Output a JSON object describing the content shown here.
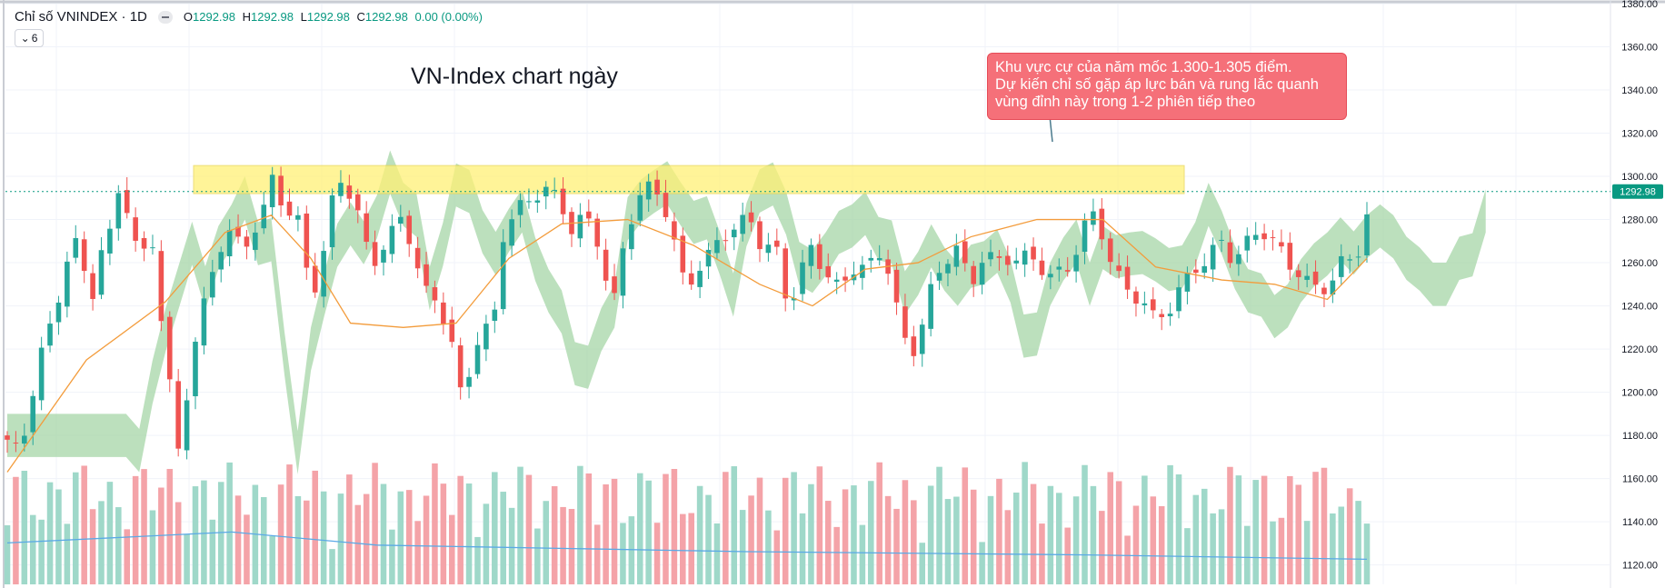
{
  "header": {
    "symbol": "Chỉ số VNINDEX · 1D",
    "ohlc": {
      "o_label": "O",
      "o_value": "1292.98",
      "h_label": "H",
      "h_value": "1292.98",
      "l_label": "L",
      "l_value": "1292.98",
      "c_label": "C",
      "c_value": "1292.98",
      "change": "0.00 (0.00%)"
    },
    "indicator_count": "6"
  },
  "annotation": {
    "line1": "Khu vực cự của năm mốc 1.300-1.305 điểm.",
    "line2": "Dự kiến chỉ số gặp áp lực bán và rung lắc quanh",
    "line3": "vùng đỉnh này trong 1-2 phiên tiếp theo"
  },
  "colors": {
    "up": "#26a69a",
    "down": "#ef5350",
    "volume_up": "#9fd8c9",
    "volume_down": "#f4a3a8",
    "cloud_bull": "#a5d6a7",
    "cloud_bear": "#f8bbd0",
    "ma": "#f39c3c",
    "volume_ma": "#5aa9e6",
    "resistance_zone": "#fff176",
    "price_tag": "#089981"
  },
  "chart_data": {
    "type": "candlestick",
    "title": "VN-Index chart ngày",
    "y_axis": {
      "ticks": [
        1120,
        1140,
        1160,
        1180,
        1200,
        1220,
        1240,
        1260,
        1280,
        1300,
        1320,
        1340,
        1360,
        1380
      ],
      "tick_labels": [
        "1120.00",
        "1140.00",
        "1160.00",
        "1180.00",
        "1200.00",
        "1220.00",
        "1240.00",
        "1260.00",
        "1280.00",
        "1300.00",
        "1320.00",
        "1340.00",
        "1360.00",
        "1380.00"
      ],
      "range": [
        1111,
        1380
      ],
      "position": "right"
    },
    "last_price": 1292.98,
    "last_price_label": "1292.98",
    "resistance_zone": [
      1292,
      1305
    ],
    "close_path": [
      [
        0,
        1178
      ],
      [
        10,
        1171
      ],
      [
        18,
        1197
      ],
      [
        28,
        1225
      ],
      [
        35,
        1232
      ],
      [
        45,
        1262
      ],
      [
        55,
        1272
      ],
      [
        62,
        1236
      ],
      [
        70,
        1265
      ],
      [
        80,
        1275
      ],
      [
        86,
        1300
      ],
      [
        96,
        1270
      ],
      [
        106,
        1262
      ],
      [
        112,
        1272
      ],
      [
        118,
        1224
      ],
      [
        125,
        1196
      ],
      [
        130,
        1170
      ],
      [
        140,
        1218
      ],
      [
        150,
        1243
      ],
      [
        160,
        1266
      ],
      [
        170,
        1276
      ],
      [
        178,
        1265
      ],
      [
        186,
        1274
      ],
      [
        196,
        1287
      ],
      [
        200,
        1300
      ],
      [
        210,
        1285
      ],
      [
        220,
        1280
      ],
      [
        230,
        1246
      ],
      [
        236,
        1252
      ],
      [
        246,
        1288
      ],
      [
        254,
        1300
      ],
      [
        262,
        1288
      ],
      [
        266,
        1282
      ],
      [
        276,
        1258
      ],
      [
        290,
        1273
      ],
      [
        300,
        1282
      ],
      [
        306,
        1268
      ],
      [
        316,
        1247
      ],
      [
        326,
        1242
      ],
      [
        336,
        1225
      ],
      [
        345,
        1194
      ],
      [
        354,
        1222
      ],
      [
        366,
        1232
      ],
      [
        370,
        1238
      ],
      [
        376,
        1274
      ],
      [
        386,
        1285
      ],
      [
        394,
        1288
      ],
      [
        402,
        1292
      ],
      [
        410,
        1295
      ],
      [
        418,
        1288
      ],
      [
        428,
        1275
      ],
      [
        434,
        1280
      ],
      [
        444,
        1278
      ],
      [
        456,
        1246
      ],
      [
        460,
        1243
      ],
      [
        468,
        1272
      ],
      [
        478,
        1290
      ],
      [
        488,
        1296
      ],
      [
        496,
        1290
      ],
      [
        504,
        1272
      ],
      [
        514,
        1248
      ],
      [
        520,
        1254
      ],
      [
        530,
        1262
      ],
      [
        540,
        1272
      ],
      [
        550,
        1275
      ],
      [
        562,
        1282
      ],
      [
        572,
        1266
      ],
      [
        582,
        1268
      ],
      [
        592,
        1238
      ],
      [
        608,
        1268
      ],
      [
        620,
        1255
      ],
      [
        630,
        1248
      ],
      [
        642,
        1258
      ],
      [
        652,
        1258
      ],
      [
        664,
        1266
      ],
      [
        676,
        1233
      ],
      [
        684,
        1215
      ],
      [
        690,
        1225
      ],
      [
        700,
        1248
      ],
      [
        712,
        1262
      ],
      [
        720,
        1268
      ],
      [
        730,
        1248
      ],
      [
        740,
        1265
      ],
      [
        752,
        1260
      ],
      [
        760,
        1262
      ],
      [
        774,
        1263
      ],
      [
        782,
        1258
      ],
      [
        792,
        1254
      ],
      [
        804,
        1257
      ],
      [
        812,
        1270
      ],
      [
        820,
        1285
      ],
      [
        830,
        1272
      ],
      [
        838,
        1258
      ],
      [
        850,
        1245
      ],
      [
        860,
        1243
      ],
      [
        870,
        1233
      ],
      [
        880,
        1238
      ],
      [
        888,
        1248
      ],
      [
        898,
        1256
      ],
      [
        910,
        1262
      ],
      [
        918,
        1271
      ],
      [
        928,
        1261
      ],
      [
        940,
        1270
      ],
      [
        950,
        1275
      ],
      [
        960,
        1270
      ],
      [
        972,
        1258
      ],
      [
        980,
        1255
      ],
      [
        990,
        1248
      ],
      [
        1000,
        1248
      ],
      [
        1010,
        1260
      ],
      [
        1022,
        1262
      ],
      [
        1030,
        1282
      ]
    ],
    "candle_count": 160,
    "volume_ma_line": [
      [
        0,
        0.38
      ],
      [
        170,
        0.48
      ],
      [
        280,
        0.36
      ],
      [
        560,
        0.3
      ],
      [
        820,
        0.27
      ],
      [
        1030,
        0.23
      ]
    ],
    "price_ma_line": [
      [
        0,
        1163
      ],
      [
        60,
        1215
      ],
      [
        120,
        1242
      ],
      [
        165,
        1274
      ],
      [
        200,
        1282
      ],
      [
        230,
        1262
      ],
      [
        260,
        1232
      ],
      [
        300,
        1230
      ],
      [
        340,
        1232
      ],
      [
        380,
        1262
      ],
      [
        420,
        1278
      ],
      [
        470,
        1280
      ],
      [
        520,
        1268
      ],
      [
        570,
        1250
      ],
      [
        610,
        1240
      ],
      [
        650,
        1257
      ],
      [
        690,
        1260
      ],
      [
        730,
        1272
      ],
      [
        780,
        1280
      ],
      [
        830,
        1280
      ],
      [
        870,
        1258
      ],
      [
        920,
        1252
      ],
      [
        960,
        1250
      ],
      [
        1000,
        1243
      ],
      [
        1030,
        1262
      ]
    ]
  }
}
